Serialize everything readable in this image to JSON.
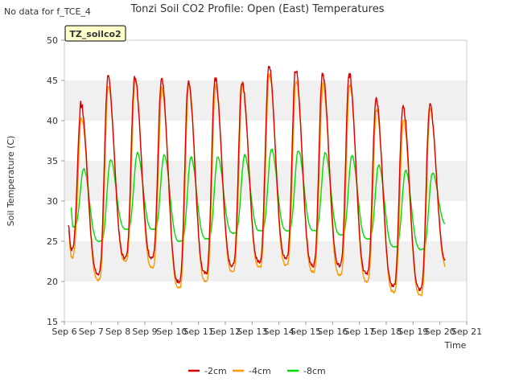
{
  "no_data_note": "No data for f_TCE_4",
  "chart_data": {
    "type": "line",
    "title": "Tonzi Soil CO2 Profile: Open (East) Temperatures",
    "xlabel": "Time",
    "ylabel": "Soil Temperature (C)",
    "badge": "TZ_soilco2",
    "x_ticks": [
      "Sep 6",
      "Sep 7",
      "Sep 8",
      "Sep 9",
      "Sep 10",
      "Sep 11",
      "Sep 12",
      "Sep 13",
      "Sep 14",
      "Sep 15",
      "Sep 16",
      "Sep 17",
      "Sep 18",
      "Sep 19",
      "Sep 20",
      "Sep 21"
    ],
    "xlim": [
      "Sep 6",
      "Sep 21"
    ],
    "ylim": [
      15,
      50
    ],
    "y_ticks": [
      15,
      20,
      25,
      30,
      35,
      40,
      45,
      50
    ],
    "grid": "horizontal bands",
    "legend_position": "bottom",
    "series": [
      {
        "name": "-2cm",
        "color": "#dd0000",
        "daily_min": [
          24.0,
          21.0,
          23.0,
          23.0,
          20.0,
          21.0,
          22.0,
          22.5,
          23.0,
          22.0,
          22.0,
          21.0,
          19.5,
          19.0,
          22.5
        ],
        "daily_max": [
          42.0,
          45.3,
          45.6,
          45.0,
          45.0,
          45.3,
          45.0,
          47.0,
          46.3,
          46.0,
          45.8,
          42.5,
          42.0,
          42.0
        ]
      },
      {
        "name": "-4cm",
        "color": "#ff9900",
        "daily_min": [
          23.0,
          20.2,
          22.5,
          21.8,
          19.2,
          20.0,
          21.2,
          21.8,
          22.0,
          21.2,
          20.8,
          20.0,
          18.7,
          18.3,
          21.8
        ],
        "daily_max": [
          40.5,
          44.5,
          45.0,
          44.0,
          44.5,
          44.5,
          44.5,
          45.8,
          45.0,
          44.5,
          44.5,
          41.5,
          40.0,
          41.5
        ]
      },
      {
        "name": "-8cm",
        "color": "#00dd00",
        "daily_min": [
          26.8,
          25.0,
          26.5,
          26.5,
          25.0,
          25.3,
          26.0,
          26.3,
          26.3,
          26.3,
          25.8,
          25.3,
          24.3,
          24.0,
          27.0
        ],
        "daily_max": [
          34.0,
          35.2,
          36.0,
          35.8,
          35.5,
          35.5,
          35.7,
          36.5,
          36.3,
          36.0,
          35.6,
          34.5,
          33.8,
          33.5
        ]
      }
    ],
    "start_values": [
      27.0,
      26.5,
      29.2
    ],
    "end_values": [
      22.5,
      21.8,
      27.0
    ]
  }
}
